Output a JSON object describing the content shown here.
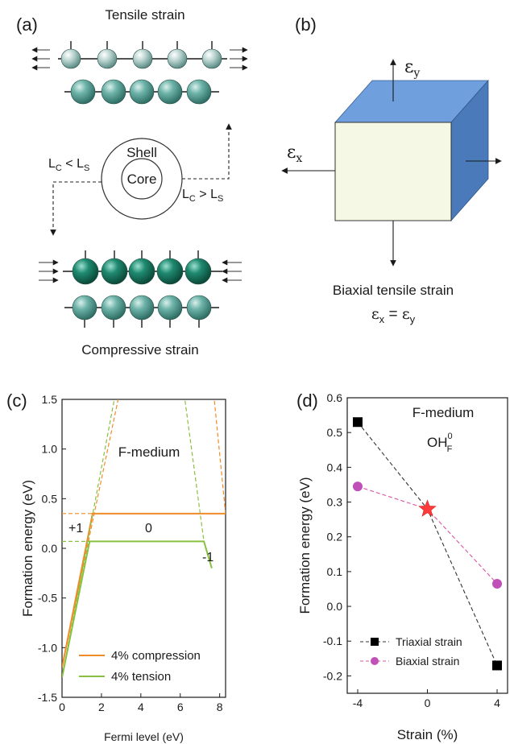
{
  "panel_a": {
    "label": "(a)",
    "title_top": "Tensile strain",
    "title_bottom": "Compressive strain",
    "shell_label": "Shell",
    "core_label": "Core",
    "left_condition": {
      "base": "L",
      "sub1": "C",
      "mid": " < L",
      "sub2": "S"
    },
    "right_condition": {
      "base": "L",
      "sub1": "C",
      "mid": " > L",
      "sub2": "S"
    }
  },
  "panel_b": {
    "label": "(b)",
    "axis_y": {
      "sym": "ε",
      "sub": "y"
    },
    "axis_x": {
      "sym": "ε",
      "sub": "x"
    },
    "caption": "Biaxial tensile strain",
    "equation": {
      "lhs_sym": "ε",
      "lhs_sub": "x",
      "eq": " = ",
      "rhs_sym": "ε",
      "rhs_sub": "y"
    },
    "colors": {
      "front": "#f4f8e4",
      "top": "#6f9fdc",
      "side": "#4a7aba"
    }
  },
  "panel_c": {
    "label": "(c)",
    "annotation": "F-medium",
    "charge_labels": {
      "plus1": "+1",
      "zero": "0",
      "minus1": "-1"
    }
  },
  "panel_d": {
    "label": "(d)",
    "annotation": "F-medium",
    "defect": {
      "base": "OH",
      "sup": "0",
      "sub": "F"
    }
  },
  "chart_data": [
    {
      "type": "line",
      "xlabel": "Fermi level (eV)",
      "ylabel": "Formation energy (eV)",
      "xlim": [
        0,
        8.3
      ],
      "ylim": [
        -1.5,
        1.5
      ],
      "xticks": [
        "0",
        "2",
        "4",
        "6",
        "8"
      ],
      "yticks": [
        "-1.5",
        "-1.0",
        "-0.5",
        "0.0",
        "0.5",
        "1.0",
        "1.5"
      ],
      "legend_position": "bottom-right",
      "series": [
        {
          "name": "4% compression",
          "color": "#f08c28",
          "x": [
            0,
            1.55,
            8.3
          ],
          "y": [
            -1.2,
            0.35,
            0.35
          ],
          "dashed": [
            {
              "x": [
                0,
                8.3
              ],
              "y": [
                0.35,
                0.35
              ]
            },
            {
              "x": [
                0,
                2.9
              ],
              "y": [
                -1.2,
                1.55
              ]
            },
            {
              "x": [
                7.7,
                8.3
              ],
              "y": [
                1.55,
                0.35
              ]
            }
          ]
        },
        {
          "name": "4% tension",
          "color": "#88c040",
          "x": [
            0,
            1.4,
            7.2,
            7.6
          ],
          "y": [
            -1.3,
            0.07,
            0.07,
            -0.2
          ],
          "dashed": [
            {
              "x": [
                0,
                7.2
              ],
              "y": [
                0.07,
                0.07
              ]
            },
            {
              "x": [
                0,
                2.7
              ],
              "y": [
                -1.3,
                1.55
              ]
            },
            {
              "x": [
                6.2,
                7.2
              ],
              "y": [
                1.55,
                0.07
              ]
            }
          ]
        }
      ]
    },
    {
      "type": "line",
      "xlabel": "Strain (%)",
      "ylabel": "Formation energy (eV)",
      "xlim": [
        -4.6,
        4.6
      ],
      "ylim": [
        -0.25,
        0.6
      ],
      "xticks": [
        "-4",
        "0",
        "4"
      ],
      "yticks": [
        "-0.2",
        "-0.1",
        "0.0",
        "0.1",
        "0.2",
        "0.3",
        "0.4",
        "0.5",
        "0.6"
      ],
      "legend_position": "bottom-left",
      "series": [
        {
          "name": "Triaxial strain",
          "color": "#000000",
          "line_color": "#333333",
          "marker": "square",
          "x": [
            -4,
            0,
            4
          ],
          "y": [
            0.53,
            0.28,
            -0.17
          ]
        },
        {
          "name": "Biaxial strain",
          "color": "#c050b8",
          "line_color": "#d9559f",
          "marker": "circle",
          "x": [
            -4,
            0,
            4
          ],
          "y": [
            0.345,
            0.28,
            0.065
          ]
        }
      ],
      "highlight": {
        "x": 0,
        "y": 0.28,
        "marker": "star",
        "color": "#ff3b3b"
      }
    }
  ]
}
